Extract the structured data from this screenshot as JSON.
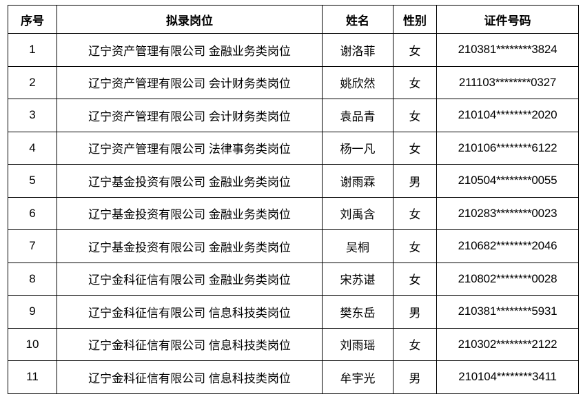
{
  "headers": [
    "序号",
    "拟录岗位",
    "姓名",
    "性别",
    "证件号码"
  ],
  "rows": [
    {
      "no": "1",
      "position": "辽宁资产管理有限公司  金融业务类岗位",
      "name": "谢洛菲",
      "gender": "女",
      "id": "210381********3824"
    },
    {
      "no": "2",
      "position": "辽宁资产管理有限公司  会计财务类岗位",
      "name": "姚欣然",
      "gender": "女",
      "id": "211103********0327"
    },
    {
      "no": "3",
      "position": "辽宁资产管理有限公司  会计财务类岗位",
      "name": "袁品青",
      "gender": "女",
      "id": "210104********2020"
    },
    {
      "no": "4",
      "position": "辽宁资产管理有限公司  法律事务类岗位",
      "name": "杨一凡",
      "gender": "女",
      "id": "210106********6122"
    },
    {
      "no": "5",
      "position": "辽宁基金投资有限公司  金融业务类岗位",
      "name": "谢雨霖",
      "gender": "男",
      "id": "210504********0055"
    },
    {
      "no": "6",
      "position": "辽宁基金投资有限公司  金融业务类岗位",
      "name": "刘禹含",
      "gender": "女",
      "id": "210283********0023"
    },
    {
      "no": "7",
      "position": "辽宁基金投资有限公司  金融业务类岗位",
      "name": "吴桐",
      "gender": "女",
      "id": "210682********2046"
    },
    {
      "no": "8",
      "position": "辽宁金科征信有限公司  金融业务类岗位",
      "name": "宋苏谌",
      "gender": "女",
      "id": "210802********0028"
    },
    {
      "no": "9",
      "position": "辽宁金科征信有限公司  信息科技类岗位",
      "name": "樊东岳",
      "gender": "男",
      "id": "210381********5931"
    },
    {
      "no": "10",
      "position": "辽宁金科征信有限公司  信息科技类岗位",
      "name": "刘雨瑶",
      "gender": "女",
      "id": "210302********2122"
    },
    {
      "no": "11",
      "position": "辽宁金科征信有限公司  信息科技类岗位",
      "name": "牟宇光",
      "gender": "男",
      "id": "210104********3411"
    }
  ]
}
